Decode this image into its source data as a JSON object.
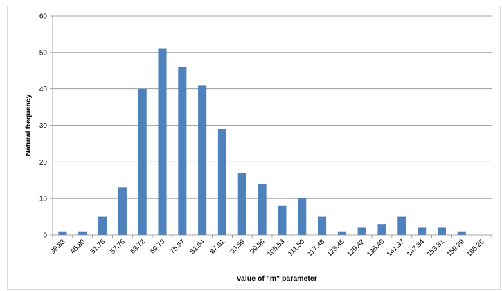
{
  "chart_data": {
    "type": "bar",
    "title": "",
    "xlabel": "value of \"m\" parameter",
    "ylabel": "Natural frequency",
    "categories": [
      "39.83",
      "45.80",
      "51.78",
      "57.75",
      "63.72",
      "69.70",
      "75.67",
      "81.64",
      "87.61",
      "93.59",
      "99.56",
      "105.53",
      "111.50",
      "117.48",
      "123.45",
      "129.42",
      "135.40",
      "141.37",
      "147.34",
      "153.31",
      "159.29",
      "165.26"
    ],
    "values": [
      1,
      1,
      5,
      13,
      40,
      51,
      46,
      41,
      29,
      17,
      14,
      8,
      10,
      5,
      1,
      2,
      3,
      5,
      2,
      2,
      1,
      0
    ],
    "ylim": [
      0,
      60
    ],
    "yticks": [
      0,
      10,
      20,
      30,
      40,
      50,
      60
    ],
    "grid": true,
    "legend": "none",
    "bar_color": "#4f81bd"
  }
}
